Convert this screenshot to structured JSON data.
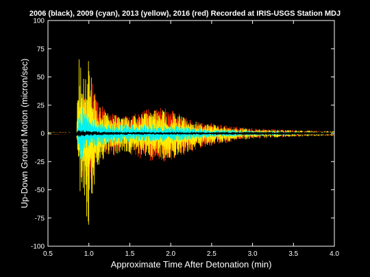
{
  "chart_data": {
    "type": "line",
    "title": "2006 (black), 2009 (cyan), 2013 (yellow), 2016 (red) Recorded at IRIS-USGS Station MDJ",
    "xlabel": "Approximate Time After Detonation (min)",
    "ylabel": "Up-Down Ground Motion (micron/sec)",
    "xlim": [
      0.5,
      4.0
    ],
    "ylim": [
      -100,
      100
    ],
    "xticks": [
      "0.5",
      "1.0",
      "1.5",
      "2.0",
      "2.5",
      "3.0",
      "3.5",
      "4.0"
    ],
    "yticks": [
      "100",
      "75",
      "50",
      "25",
      "0",
      "-25",
      "-50",
      "-75",
      "-100"
    ],
    "grid": false,
    "series": [
      {
        "name": "2016 (red)",
        "color": "#ff2a00",
        "envelope": {
          "x": [
            0.5,
            0.85,
            0.9,
            1.0,
            1.1,
            1.2,
            1.4,
            1.6,
            1.8,
            2.0,
            2.1,
            2.2,
            2.4,
            2.6,
            2.8,
            3.0,
            3.2,
            3.5,
            4.0
          ],
          "max": [
            0.5,
            0.5,
            40,
            55,
            32,
            22,
            15,
            18,
            24,
            22,
            20,
            14,
            10,
            8,
            6,
            5,
            4,
            3,
            2
          ],
          "min": [
            -0.5,
            -0.5,
            -40,
            -55,
            -32,
            -22,
            -18,
            -22,
            -26,
            -25,
            -22,
            -18,
            -12,
            -10,
            -7,
            -5,
            -4,
            -3,
            -2
          ]
        }
      },
      {
        "name": "2013 (yellow)",
        "color": "#ffee00",
        "envelope": {
          "x": [
            0.5,
            0.85,
            0.88,
            0.92,
            1.0,
            1.1,
            1.2,
            1.4,
            1.6,
            1.8,
            2.0,
            2.2,
            2.4,
            2.6,
            2.8,
            3.0,
            3.2,
            3.5,
            4.0
          ],
          "max": [
            0.5,
            0.5,
            90,
            45,
            68,
            30,
            20,
            14,
            16,
            22,
            20,
            13,
            9,
            7,
            5,
            4,
            3,
            3,
            2
          ],
          "min": [
            -0.5,
            -0.5,
            -55,
            -45,
            -92,
            -30,
            -22,
            -17,
            -20,
            -24,
            -24,
            -17,
            -11,
            -9,
            -6,
            -5,
            -4,
            -3,
            -2
          ]
        }
      },
      {
        "name": "2009 (cyan)",
        "color": "#00f0f0",
        "envelope": {
          "x": [
            0.5,
            0.85,
            0.9,
            1.0,
            1.1,
            1.2,
            1.4,
            1.6,
            1.8,
            2.0,
            2.2,
            2.4,
            2.6,
            2.8,
            3.0,
            3.2,
            3.5,
            4.0
          ],
          "max": [
            0.3,
            0.3,
            25,
            15,
            12,
            10,
            8,
            8,
            8,
            7,
            6,
            4,
            3,
            3,
            2,
            2,
            1.5,
            1
          ],
          "min": [
            -0.3,
            -0.3,
            -25,
            -15,
            -12,
            -10,
            -8,
            -8,
            -8,
            -7,
            -6,
            -4,
            -3,
            -3,
            -2,
            -2,
            -1.5,
            -1
          ]
        }
      },
      {
        "name": "2006 (black)",
        "color": "#000000",
        "envelope": {
          "x": [
            0.5,
            0.9,
            1.0,
            1.2,
            1.6,
            2.0,
            2.5,
            3.0,
            4.0
          ],
          "max": [
            0.1,
            3,
            2,
            1.5,
            1.2,
            1,
            0.8,
            0.6,
            0.4
          ],
          "min": [
            -0.1,
            -3,
            -2,
            -1.5,
            -1.2,
            -1,
            -0.8,
            -0.6,
            -0.4
          ]
        }
      }
    ]
  }
}
